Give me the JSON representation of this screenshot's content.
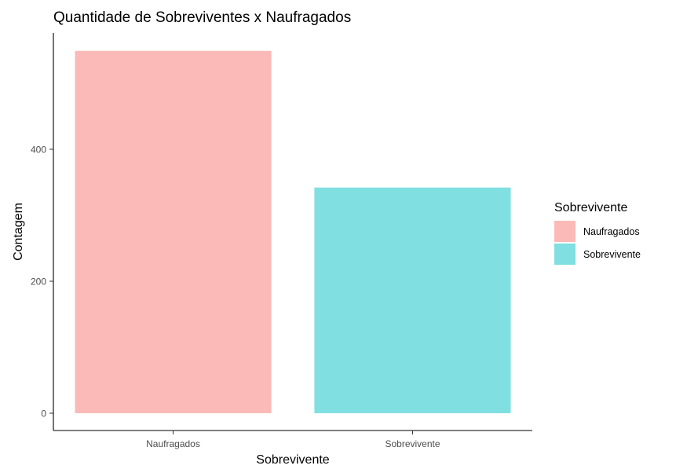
{
  "chart_data": {
    "type": "bar",
    "title": "Quantidade de Sobreviventes x Naufragados",
    "xlabel": "Sobrevivente",
    "ylabel": "Contagem",
    "categories": [
      "Naufragados",
      "Sobrevivente"
    ],
    "values": [
      549,
      342
    ],
    "colors": [
      "#fbbab7",
      "#80dfe1"
    ],
    "ylim": [
      0,
      580
    ],
    "yticks": [
      0,
      200,
      400
    ],
    "grid": false,
    "legend": {
      "title": "Sobrevivente",
      "placement": "right",
      "entries": [
        "Naufragados",
        "Sobrevivente"
      ]
    }
  }
}
